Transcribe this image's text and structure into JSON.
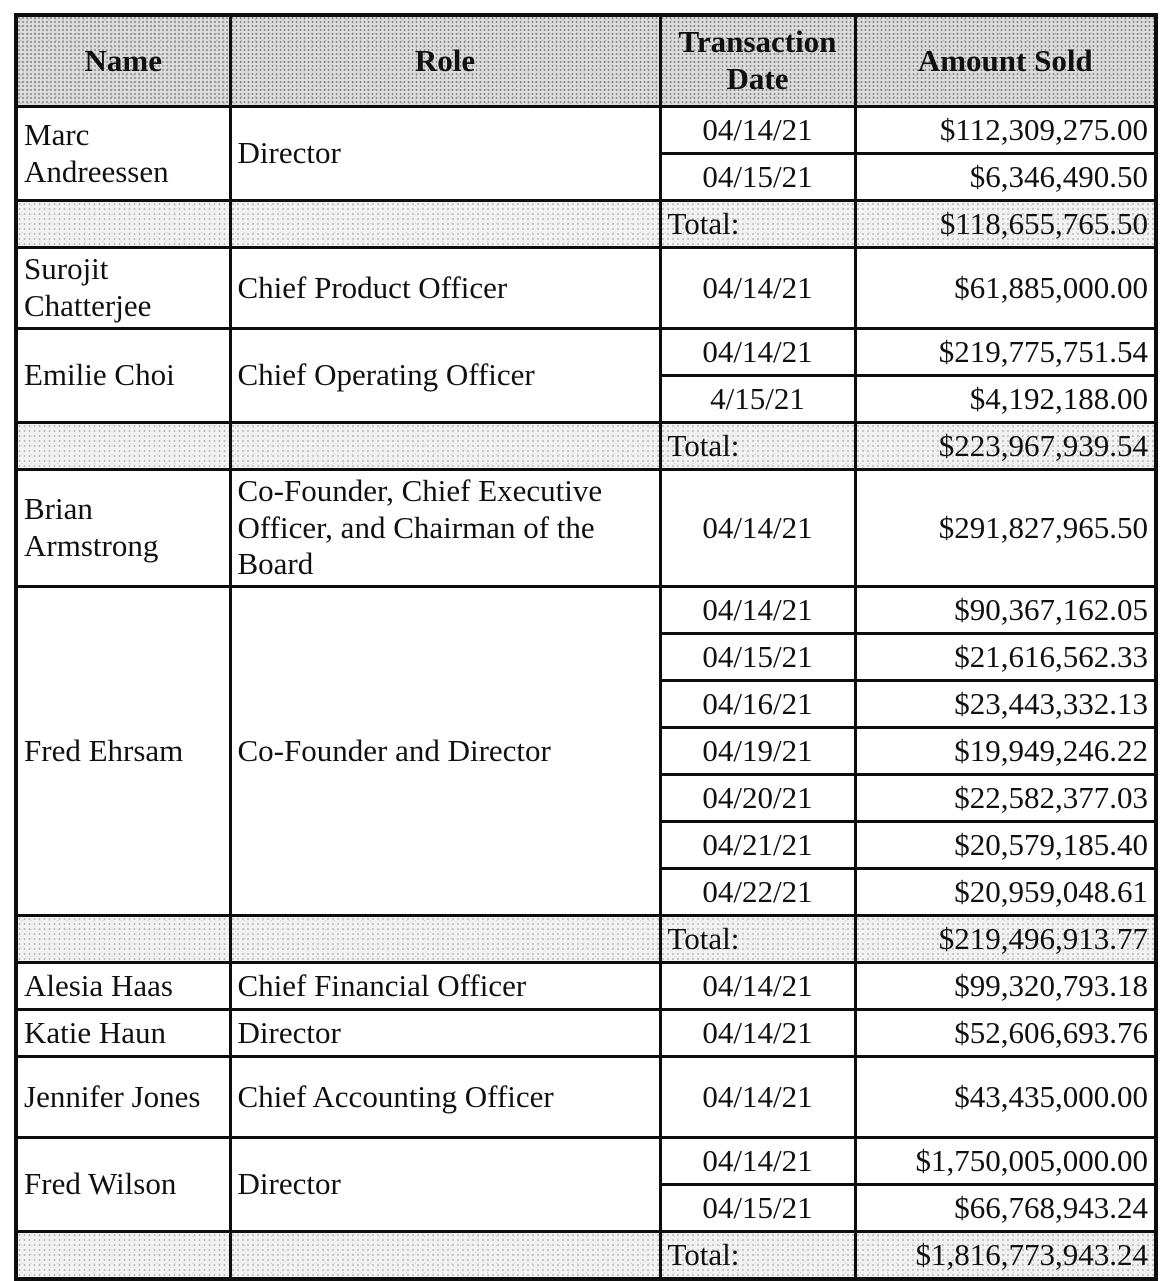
{
  "table": {
    "headers": {
      "name": "Name",
      "role": "Role",
      "date": "Transaction Date",
      "amount": "Amount Sold"
    },
    "total_label": "Total:",
    "sections": [
      {
        "name": "Marc Andreessen",
        "role": "Director",
        "transactions": [
          {
            "date": "04/14/21",
            "amount": "$112,309,275.00"
          },
          {
            "date": "04/15/21",
            "amount": "$6,346,490.50"
          }
        ],
        "total_amount": "$118,655,765.50"
      },
      {
        "name": "Surojit Chatterjee",
        "role": "Chief Product Officer",
        "transactions": [
          {
            "date": "04/14/21",
            "amount": "$61,885,000.00"
          }
        ]
      },
      {
        "name": "Emilie Choi",
        "role": "Chief Operating Officer",
        "transactions": [
          {
            "date": "04/14/21",
            "amount": "$219,775,751.54"
          },
          {
            "date": "4/15/21",
            "amount": "$4,192,188.00"
          }
        ],
        "total_amount": "$223,967,939.54"
      },
      {
        "name": "Brian Armstrong",
        "role": "Co-Founder, Chief Executive Officer, and Chairman of the Board",
        "transactions": [
          {
            "date": "04/14/21",
            "amount": "$291,827,965.50"
          }
        ]
      },
      {
        "name": "Fred Ehrsam",
        "role": "Co-Founder and Director",
        "transactions": [
          {
            "date": "04/14/21",
            "amount": "$90,367,162.05"
          },
          {
            "date": "04/15/21",
            "amount": "$21,616,562.33"
          },
          {
            "date": "04/16/21",
            "amount": "$23,443,332.13"
          },
          {
            "date": "04/19/21",
            "amount": "$19,949,246.22"
          },
          {
            "date": "04/20/21",
            "amount": "$22,582,377.03"
          },
          {
            "date": "04/21/21",
            "amount": "$20,579,185.40"
          },
          {
            "date": "04/22/21",
            "amount": "$20,959,048.61"
          }
        ],
        "total_amount": "$219,496,913.77"
      },
      {
        "name": "Alesia Haas",
        "role": "Chief Financial Officer",
        "transactions": [
          {
            "date": "04/14/21",
            "amount": "$99,320,793.18"
          }
        ]
      },
      {
        "name": "Katie Haun",
        "role": "Director",
        "transactions": [
          {
            "date": "04/14/21",
            "amount": "$52,606,693.76"
          }
        ]
      },
      {
        "name": "Jennifer Jones",
        "role": "Chief Accounting Officer",
        "transactions": [
          {
            "date": "04/14/21",
            "amount": "$43,435,000.00"
          }
        ]
      },
      {
        "name": "Fred Wilson",
        "role": "Director",
        "transactions": [
          {
            "date": "04/14/21",
            "amount": "$1,750,005,000.00"
          },
          {
            "date": "04/15/21",
            "amount": "$66,768,943.24"
          }
        ],
        "total_amount": "$1,816,773,943.24"
      }
    ]
  }
}
